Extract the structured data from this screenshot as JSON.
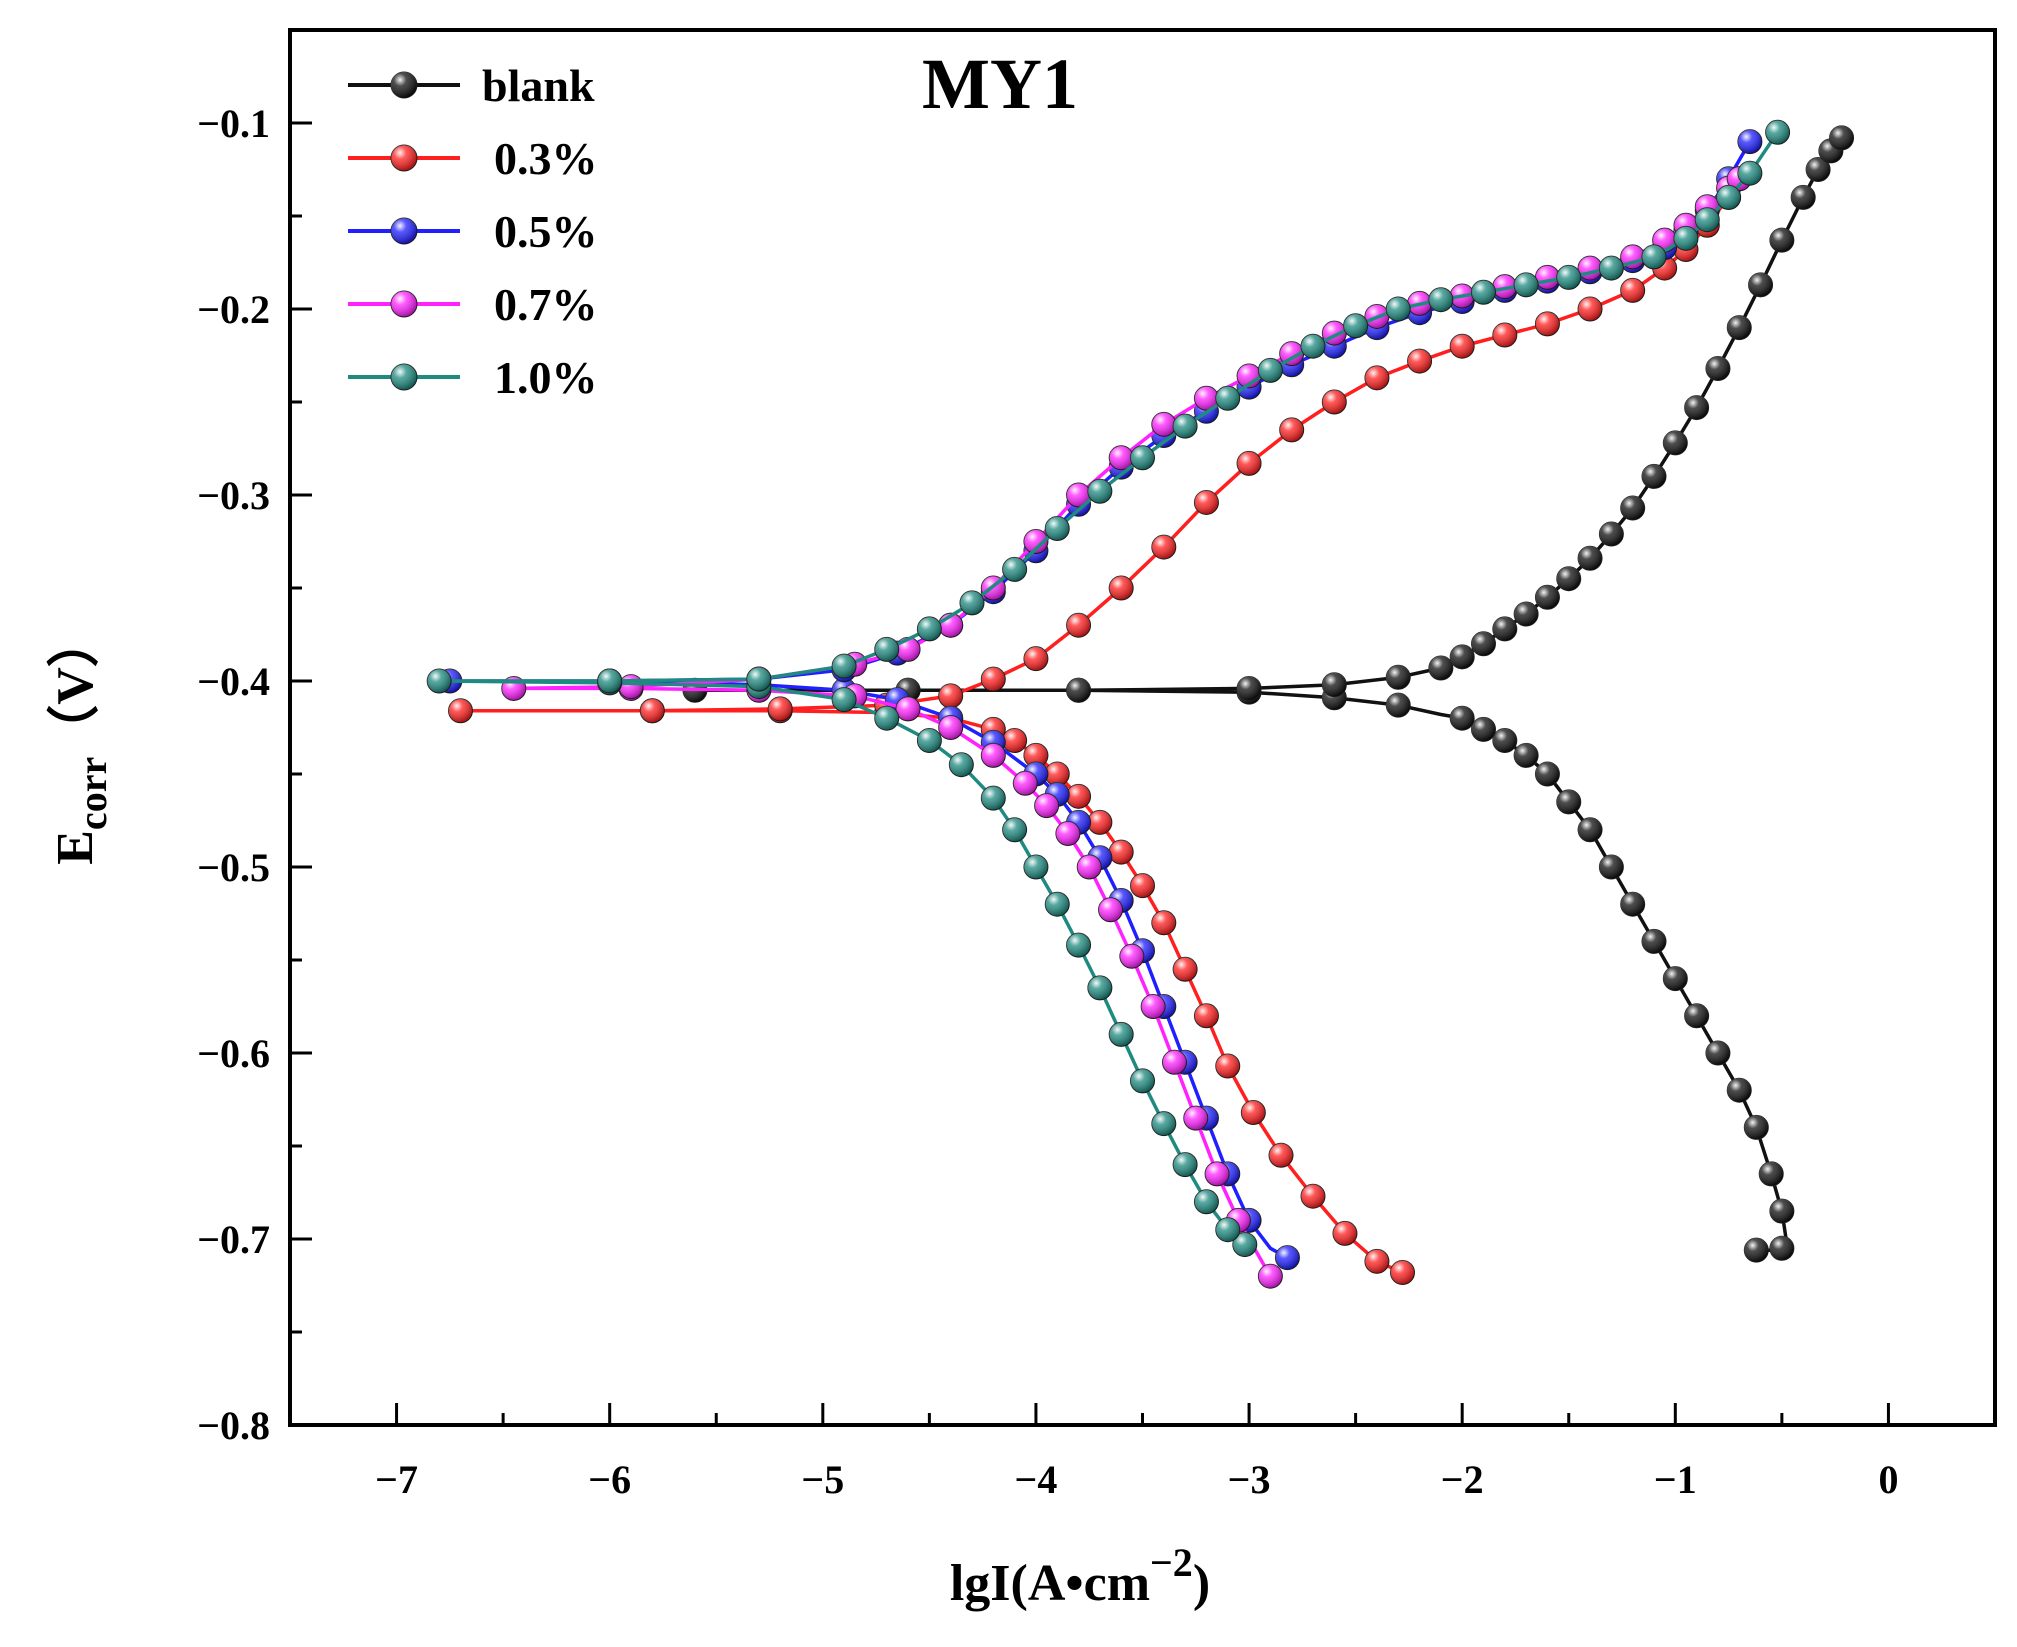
{
  "chart_data": {
    "type": "line",
    "title": "MY1",
    "xlabel": "lgI(A•cm",
    "xlabel_sup": "−2",
    "xlabel_close": ")",
    "ylabel": "E",
    "ylabel_sub": "corr",
    "ylabel_unit": "（V）",
    "xlim": [
      -7.5,
      0.5
    ],
    "ylim": [
      -0.8,
      -0.05
    ],
    "xticks": [
      -7,
      -6,
      -5,
      -4,
      -3,
      -2,
      -1,
      0
    ],
    "xtick_labels": [
      "−7",
      "−6",
      "−5",
      "−4",
      "−3",
      "−2",
      "−1",
      "0"
    ],
    "yticks": [
      -0.1,
      -0.2,
      -0.3,
      -0.4,
      -0.5,
      -0.6,
      -0.7,
      -0.8
    ],
    "ytick_labels": [
      "−0.1",
      "−0.2",
      "−0.3",
      "−0.4",
      "−0.5",
      "−0.6",
      "−0.7",
      "−0.8"
    ],
    "legend_position": "top-left",
    "series": [
      {
        "name": "blank",
        "color": "#111111",
        "x": [
          -0.62,
          -0.55,
          -0.5,
          -0.48,
          -0.5,
          -0.55,
          -0.62,
          -0.7,
          -0.8,
          -0.9,
          -1.0,
          -1.1,
          -1.2,
          -1.3,
          -1.4,
          -1.5,
          -1.6,
          -1.7,
          -1.8,
          -1.9,
          -2.0,
          -2.1,
          -2.3,
          -2.6,
          -3.0,
          -3.8,
          -4.6,
          -5.6,
          -4.6,
          -3.8,
          -3.0,
          -2.6,
          -2.3,
          -2.1,
          -2.0,
          -1.9,
          -1.8,
          -1.7,
          -1.6,
          -1.5,
          -1.4,
          -1.3,
          -1.2,
          -1.1,
          -1.0,
          -0.9,
          -0.8,
          -0.7,
          -0.6,
          -0.5,
          -0.4,
          -0.33,
          -0.27,
          -0.22
        ],
        "y": [
          -0.706,
          -0.706,
          -0.705,
          -0.7,
          -0.685,
          -0.665,
          -0.64,
          -0.62,
          -0.6,
          -0.58,
          -0.56,
          -0.54,
          -0.52,
          -0.5,
          -0.48,
          -0.465,
          -0.45,
          -0.44,
          -0.432,
          -0.426,
          -0.42,
          -0.418,
          -0.413,
          -0.409,
          -0.406,
          -0.405,
          -0.405,
          -0.405,
          -0.405,
          -0.405,
          -0.404,
          -0.402,
          -0.398,
          -0.393,
          -0.387,
          -0.38,
          -0.372,
          -0.364,
          -0.355,
          -0.345,
          -0.334,
          -0.321,
          -0.307,
          -0.29,
          -0.272,
          -0.253,
          -0.232,
          -0.21,
          -0.187,
          -0.163,
          -0.14,
          -0.125,
          -0.115,
          -0.108
        ]
      },
      {
        "name": "0.3%",
        "color": "#ff1f1f",
        "x": [
          -2.28,
          -2.4,
          -2.55,
          -2.7,
          -2.85,
          -2.98,
          -3.1,
          -3.2,
          -3.3,
          -3.4,
          -3.5,
          -3.6,
          -3.7,
          -3.8,
          -3.9,
          -4.0,
          -4.1,
          -4.2,
          -4.4,
          -4.7,
          -5.2,
          -5.8,
          -6.7,
          -5.8,
          -5.2,
          -4.7,
          -4.4,
          -4.2,
          -4.0,
          -3.8,
          -3.6,
          -3.4,
          -3.2,
          -3.0,
          -2.8,
          -2.6,
          -2.4,
          -2.2,
          -2.0,
          -1.8,
          -1.6,
          -1.4,
          -1.2,
          -1.05,
          -0.95,
          -0.85,
          -0.75,
          -0.7
        ],
        "y": [
          -0.718,
          -0.712,
          -0.697,
          -0.677,
          -0.655,
          -0.632,
          -0.607,
          -0.58,
          -0.555,
          -0.53,
          -0.51,
          -0.492,
          -0.476,
          -0.462,
          -0.45,
          -0.44,
          -0.432,
          -0.426,
          -0.42,
          -0.417,
          -0.416,
          -0.416,
          -0.416,
          -0.416,
          -0.415,
          -0.413,
          -0.408,
          -0.399,
          -0.388,
          -0.37,
          -0.35,
          -0.328,
          -0.304,
          -0.283,
          -0.265,
          -0.25,
          -0.237,
          -0.228,
          -0.22,
          -0.214,
          -0.208,
          -0.2,
          -0.19,
          -0.178,
          -0.168,
          -0.155,
          -0.14,
          -0.13
        ]
      },
      {
        "name": "0.5%",
        "color": "#1f1fff",
        "x": [
          -2.82,
          -2.9,
          -3.0,
          -3.1,
          -3.2,
          -3.3,
          -3.4,
          -3.5,
          -3.6,
          -3.7,
          -3.8,
          -3.9,
          -4.0,
          -4.2,
          -4.4,
          -4.65,
          -4.9,
          -5.3,
          -6.0,
          -6.75,
          -6.0,
          -5.3,
          -4.9,
          -4.65,
          -4.4,
          -4.2,
          -4.0,
          -3.8,
          -3.6,
          -3.4,
          -3.2,
          -3.0,
          -2.8,
          -2.6,
          -2.4,
          -2.2,
          -2.0,
          -1.8,
          -1.6,
          -1.4,
          -1.2,
          -1.05,
          -0.95,
          -0.85,
          -0.75,
          -0.65
        ],
        "y": [
          -0.71,
          -0.705,
          -0.69,
          -0.665,
          -0.635,
          -0.605,
          -0.575,
          -0.545,
          -0.518,
          -0.495,
          -0.476,
          -0.461,
          -0.45,
          -0.433,
          -0.42,
          -0.41,
          -0.405,
          -0.402,
          -0.4,
          -0.4,
          -0.4,
          -0.399,
          -0.394,
          -0.385,
          -0.37,
          -0.352,
          -0.33,
          -0.305,
          -0.285,
          -0.268,
          -0.255,
          -0.242,
          -0.23,
          -0.22,
          -0.21,
          -0.202,
          -0.196,
          -0.19,
          -0.185,
          -0.18,
          -0.174,
          -0.167,
          -0.158,
          -0.147,
          -0.13,
          -0.11
        ]
      },
      {
        "name": "0.7%",
        "color": "#ff22ff",
        "x": [
          -2.9,
          -2.95,
          -3.05,
          -3.15,
          -3.25,
          -3.35,
          -3.45,
          -3.55,
          -3.65,
          -3.75,
          -3.85,
          -3.95,
          -4.05,
          -4.2,
          -4.4,
          -4.6,
          -4.85,
          -5.3,
          -5.9,
          -6.45,
          -5.9,
          -5.3,
          -4.85,
          -4.6,
          -4.4,
          -4.2,
          -4.0,
          -3.8,
          -3.6,
          -3.4,
          -3.2,
          -3.0,
          -2.8,
          -2.6,
          -2.4,
          -2.2,
          -2.0,
          -1.8,
          -1.6,
          -1.4,
          -1.2,
          -1.05,
          -0.95,
          -0.85,
          -0.75,
          -0.7
        ],
        "y": [
          -0.72,
          -0.71,
          -0.69,
          -0.665,
          -0.635,
          -0.605,
          -0.575,
          -0.548,
          -0.523,
          -0.5,
          -0.482,
          -0.467,
          -0.455,
          -0.44,
          -0.425,
          -0.415,
          -0.408,
          -0.405,
          -0.404,
          -0.404,
          -0.403,
          -0.399,
          -0.391,
          -0.383,
          -0.37,
          -0.35,
          -0.325,
          -0.3,
          -0.28,
          -0.262,
          -0.248,
          -0.236,
          -0.224,
          -0.213,
          -0.204,
          -0.197,
          -0.193,
          -0.188,
          -0.183,
          -0.178,
          -0.172,
          -0.163,
          -0.155,
          -0.145,
          -0.135,
          -0.13
        ]
      },
      {
        "name": "1.0%",
        "color": "#1e8a80",
        "x": [
          -3.02,
          -3.1,
          -3.2,
          -3.3,
          -3.4,
          -3.5,
          -3.6,
          -3.7,
          -3.8,
          -3.9,
          -4.0,
          -4.1,
          -4.2,
          -4.35,
          -4.5,
          -4.7,
          -4.9,
          -5.3,
          -6.0,
          -6.8,
          -6.0,
          -5.3,
          -4.9,
          -4.7,
          -4.5,
          -4.3,
          -4.1,
          -3.9,
          -3.7,
          -3.5,
          -3.3,
          -3.1,
          -2.9,
          -2.7,
          -2.5,
          -2.3,
          -2.1,
          -1.9,
          -1.7,
          -1.5,
          -1.3,
          -1.1,
          -0.95,
          -0.85,
          -0.75,
          -0.65,
          -0.52
        ],
        "y": [
          -0.703,
          -0.695,
          -0.68,
          -0.66,
          -0.638,
          -0.615,
          -0.59,
          -0.565,
          -0.542,
          -0.52,
          -0.5,
          -0.48,
          -0.463,
          -0.445,
          -0.432,
          -0.42,
          -0.41,
          -0.403,
          -0.401,
          -0.4,
          -0.4,
          -0.399,
          -0.392,
          -0.383,
          -0.372,
          -0.358,
          -0.34,
          -0.318,
          -0.298,
          -0.28,
          -0.263,
          -0.248,
          -0.233,
          -0.22,
          -0.209,
          -0.2,
          -0.195,
          -0.191,
          -0.187,
          -0.183,
          -0.178,
          -0.172,
          -0.162,
          -0.152,
          -0.14,
          -0.127,
          -0.105
        ]
      }
    ]
  }
}
